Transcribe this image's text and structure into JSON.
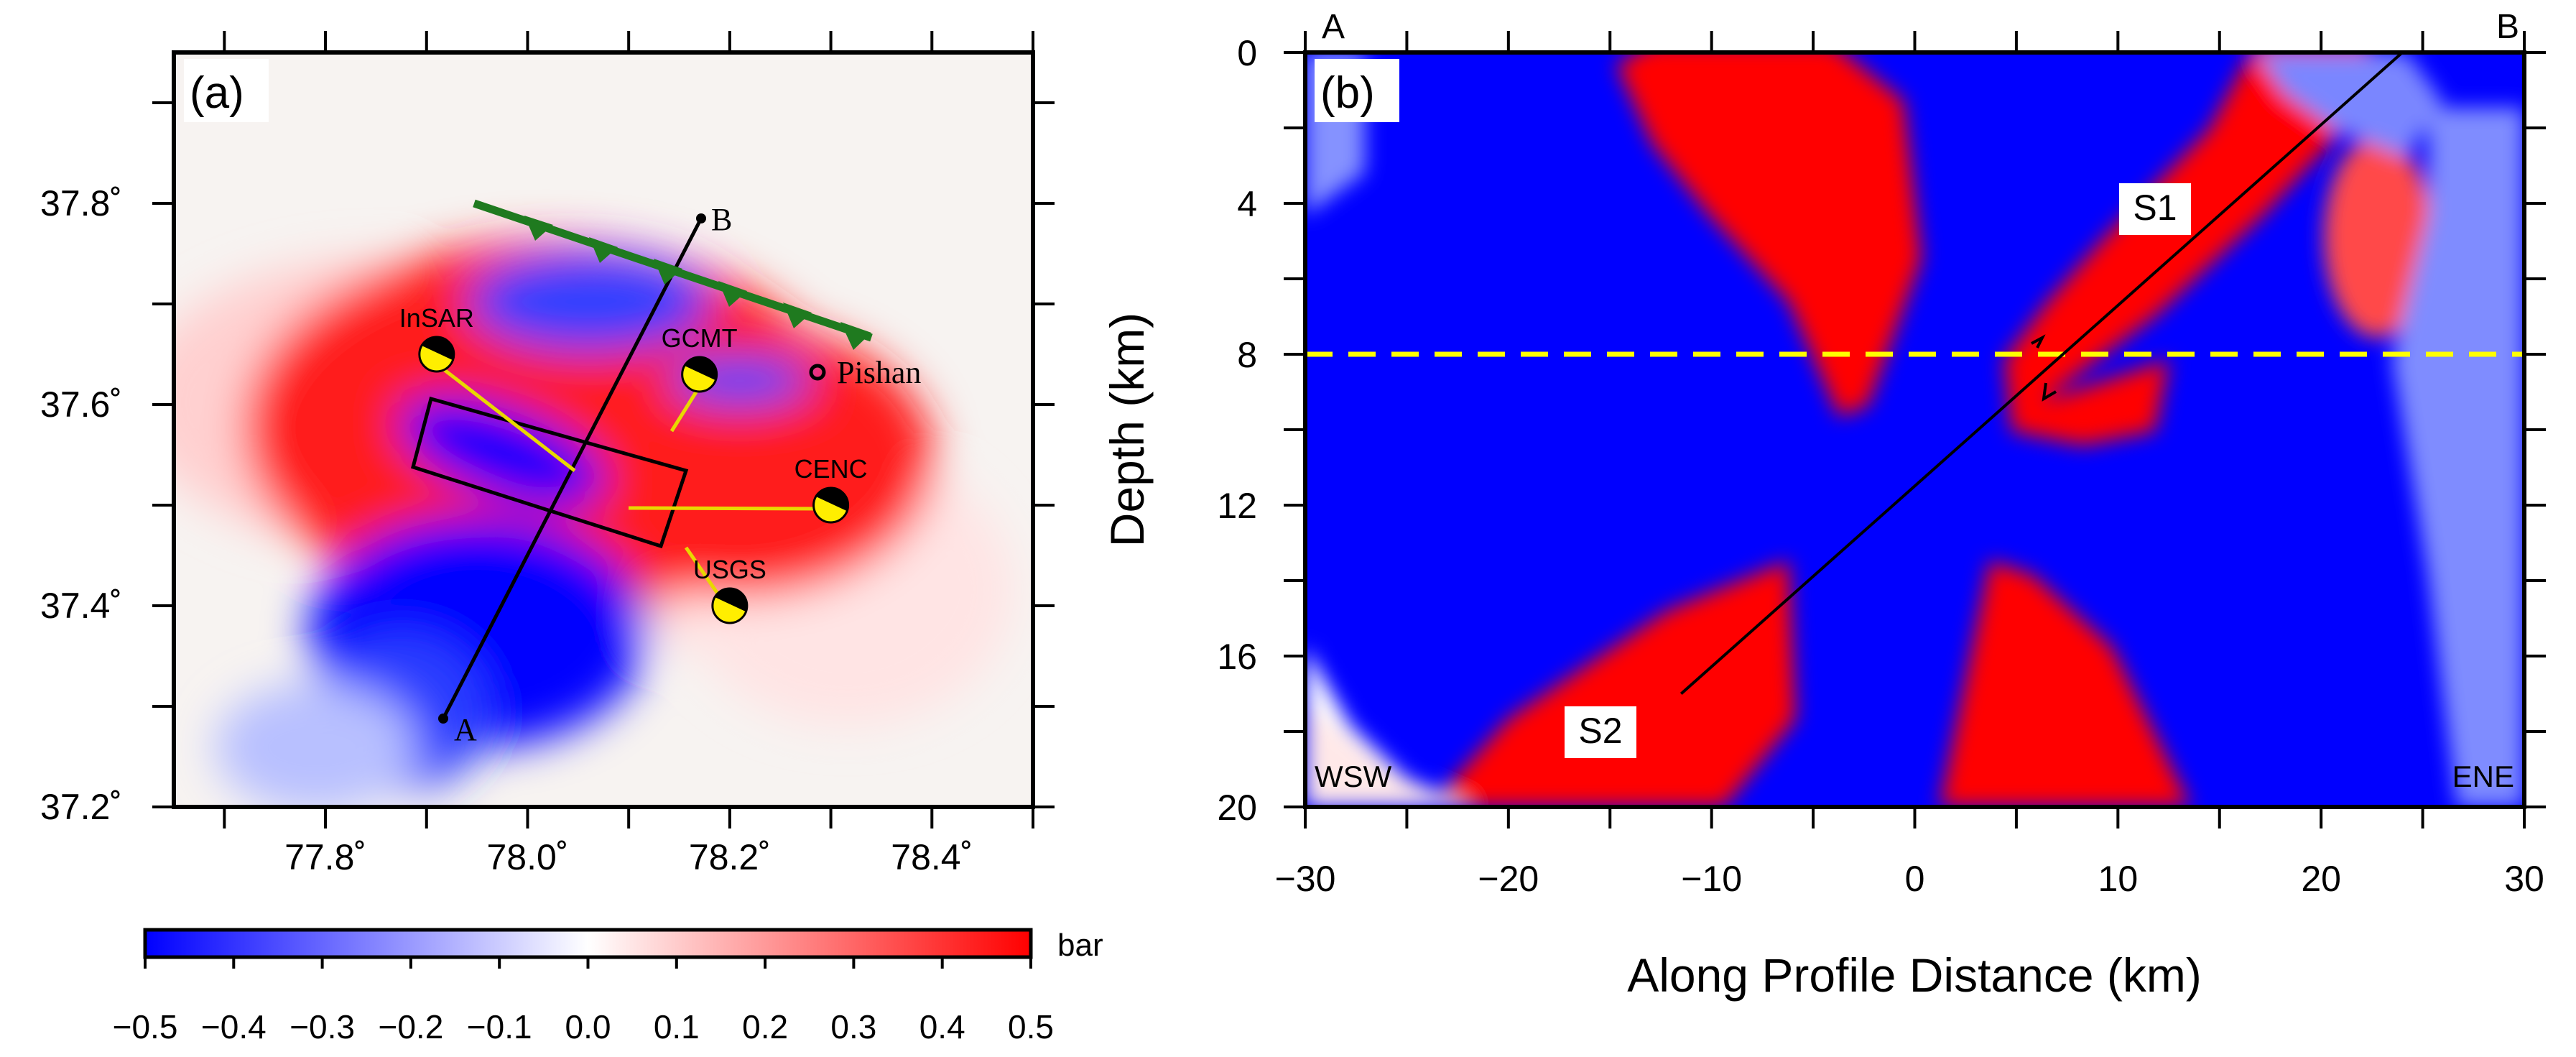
{
  "chart_data": [
    {
      "type": "heatmap",
      "panel_label": "(a)",
      "title": "",
      "xlabel": "",
      "ylabel": "",
      "xticks": [
        "77.8˚",
        "78.0˚",
        "78.2˚",
        "78.4˚"
      ],
      "xtick_values": [
        77.8,
        78.0,
        78.2,
        78.4
      ],
      "yticks": [
        "37.2˚",
        "37.4˚",
        "37.6˚",
        "37.8˚"
      ],
      "ytick_values": [
        37.2,
        37.4,
        37.6,
        37.8
      ],
      "xlim": [
        77.65,
        78.5
      ],
      "ylim": [
        37.2,
        37.95
      ],
      "profile": {
        "start_label": "A",
        "end_label": "B",
        "start": [
          77.92,
          37.28
        ],
        "end": [
          78.17,
          37.78
        ]
      },
      "city": {
        "name": "Pishan",
        "lon": 78.29,
        "lat": 37.63
      },
      "focal_mechanisms": [
        {
          "label": "InSAR",
          "lon": 77.91,
          "lat": 37.65
        },
        {
          "label": "GCMT",
          "lon": 78.17,
          "lat": 37.63
        },
        {
          "label": "CENC",
          "lon": 78.3,
          "lat": 37.5
        },
        {
          "label": "USGS",
          "lon": 78.2,
          "lat": 37.4
        }
      ],
      "colorbar": {
        "ticks": [
          "−0.5",
          "−0.4",
          "−0.3",
          "−0.2",
          "−0.1",
          "0.0",
          "0.1",
          "0.2",
          "0.3",
          "0.4",
          "0.5"
        ],
        "range": [
          -0.5,
          0.5
        ],
        "unit": "bar",
        "colors": [
          "#0000ff",
          "#ffffff",
          "#ff0000"
        ]
      }
    },
    {
      "type": "heatmap",
      "panel_label": "(b)",
      "title": "",
      "xlabel": "Along Profile Distance (km)",
      "ylabel": "Depth (km)",
      "xticks": [
        "−30",
        "−20",
        "−10",
        "0",
        "10",
        "20",
        "30"
      ],
      "xtick_values": [
        -30,
        -20,
        -10,
        0,
        10,
        20,
        30
      ],
      "yticks": [
        "0",
        "4",
        "8",
        "12",
        "16",
        "20"
      ],
      "ytick_values": [
        0,
        4,
        8,
        12,
        16,
        20
      ],
      "xlim": [
        -30,
        30
      ],
      "ylim": [
        0,
        20
      ],
      "reference_depth_km": 8,
      "fault_line": {
        "start": [
          -11.5,
          17
        ],
        "end": [
          24,
          0
        ]
      },
      "labels": {
        "left_end": "A",
        "right_end": "B",
        "left_dir": "WSW",
        "right_dir": "ENE",
        "segment1": "S1",
        "segment2": "S2"
      }
    }
  ],
  "colors": {
    "positive": "#ff0000",
    "negative": "#0000ff",
    "fault_trace": "#1f7a1f",
    "reference_line": "#ffff00",
    "mechanism_fill": "#ffee00"
  }
}
